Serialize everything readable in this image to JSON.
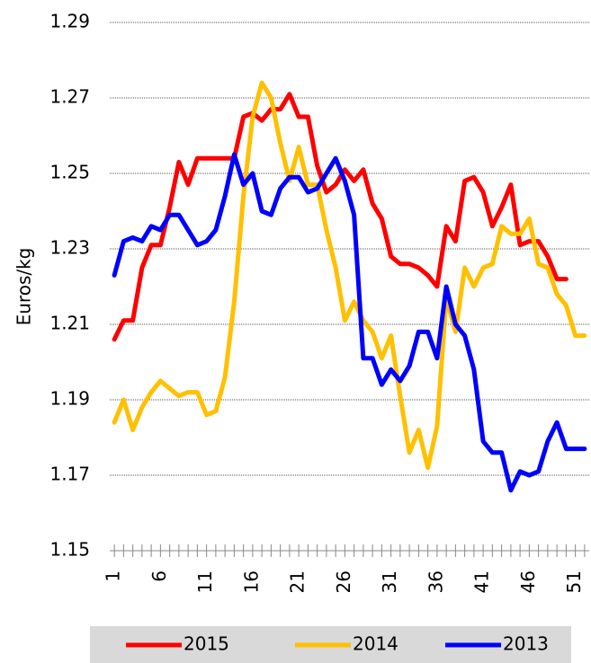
{
  "chart_data": {
    "type": "line",
    "y_label": "Euros/kg",
    "x": [
      1,
      2,
      3,
      4,
      5,
      6,
      7,
      8,
      9,
      10,
      11,
      12,
      13,
      14,
      15,
      16,
      17,
      18,
      19,
      20,
      21,
      22,
      23,
      24,
      25,
      26,
      27,
      28,
      29,
      30,
      31,
      32,
      33,
      34,
      35,
      36,
      37,
      38,
      39,
      40,
      41,
      42,
      43,
      44,
      45,
      46,
      47,
      48,
      49,
      50,
      51,
      52
    ],
    "xlim": [
      0.5,
      52.5
    ],
    "xticks": [
      1,
      6,
      11,
      16,
      21,
      26,
      31,
      36,
      41,
      46,
      51
    ],
    "ylim": [
      1.15,
      1.29
    ],
    "yticks": [
      1.15,
      1.17,
      1.19,
      1.21,
      1.23,
      1.25,
      1.27,
      1.29
    ],
    "grid": true,
    "legend": "bottom",
    "series": [
      {
        "name": "2015",
        "color": "#ff0000",
        "values": [
          1.206,
          1.211,
          1.211,
          1.225,
          1.231,
          1.231,
          1.241,
          1.253,
          1.247,
          1.254,
          1.254,
          1.254,
          1.254,
          1.254,
          1.265,
          1.266,
          1.264,
          1.267,
          1.267,
          1.271,
          1.265,
          1.265,
          1.252,
          1.245,
          1.247,
          1.251,
          1.248,
          1.251,
          1.242,
          1.238,
          1.228,
          1.226,
          1.226,
          1.225,
          1.223,
          1.22,
          1.236,
          1.232,
          1.248,
          1.249,
          1.245,
          1.236,
          1.241,
          1.247,
          1.231,
          1.232,
          1.232,
          1.228,
          1.222,
          1.222,
          null,
          null
        ]
      },
      {
        "name": "2014",
        "color": "#ffc000",
        "values": [
          1.184,
          1.19,
          1.182,
          1.188,
          1.192,
          1.195,
          1.193,
          1.191,
          1.192,
          1.192,
          1.186,
          1.187,
          1.196,
          1.216,
          1.244,
          1.265,
          1.274,
          1.27,
          1.258,
          1.248,
          1.257,
          1.247,
          1.247,
          1.235,
          1.225,
          1.211,
          1.216,
          1.211,
          1.208,
          1.201,
          1.207,
          1.191,
          1.176,
          1.182,
          1.172,
          1.183,
          1.217,
          1.208,
          1.225,
          1.22,
          1.225,
          1.226,
          1.236,
          1.234,
          1.234,
          1.238,
          1.226,
          1.225,
          1.218,
          1.215,
          1.207,
          1.207
        ]
      },
      {
        "name": "2013",
        "color": "#0000ff",
        "values": [
          1.223,
          1.232,
          1.233,
          1.232,
          1.236,
          1.235,
          1.239,
          1.239,
          1.235,
          1.231,
          1.232,
          1.235,
          1.244,
          1.255,
          1.247,
          1.25,
          1.24,
          1.239,
          1.246,
          1.249,
          1.249,
          1.245,
          1.246,
          1.25,
          1.254,
          1.248,
          1.239,
          1.201,
          1.201,
          1.194,
          1.198,
          1.195,
          1.199,
          1.208,
          1.208,
          1.201,
          1.22,
          1.21,
          1.207,
          1.198,
          1.179,
          1.176,
          1.176,
          1.166,
          1.171,
          1.17,
          1.171,
          1.179,
          1.184,
          1.177,
          1.177,
          1.177
        ]
      }
    ]
  }
}
